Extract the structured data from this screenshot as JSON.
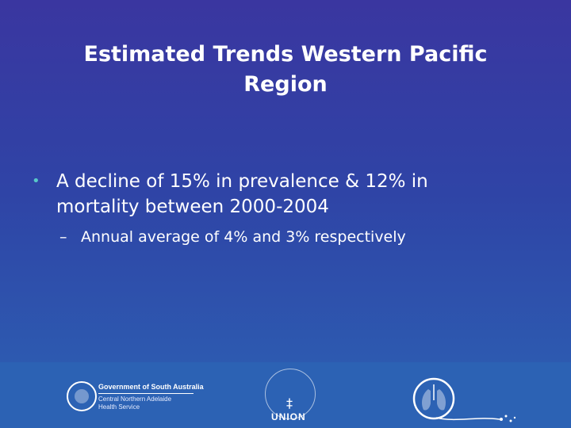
{
  "slide": {
    "title_line1": "Estimated Trends Western Pacific",
    "title_line2": "Region",
    "bullet_marker": "•",
    "bullet_line1": "A decline of 15% in prevalence & 12% in",
    "bullet_line2": "mortality between 2000-2004",
    "sub_marker": "–",
    "sub_bullet": "Annual average of 4% and 3% respectively"
  },
  "footer": {
    "sa_gov": "Government of South Australia",
    "sa_dept_line1": "Central Northern Adelaide",
    "sa_dept_line2": "Health Service",
    "union_word": "UNION"
  },
  "colors": {
    "background_top": "#3a36a0",
    "background_bottom": "#2c62b4",
    "bullet_dot": "#58c8c8",
    "text": "#ffffff"
  }
}
